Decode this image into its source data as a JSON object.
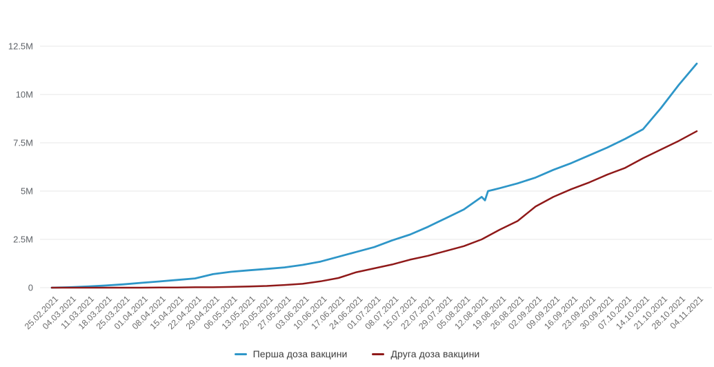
{
  "page": {
    "background_color": "#ffffff"
  },
  "chart_data": {
    "type": "line",
    "title": "",
    "grid": "horizontal",
    "grid_color": "#e7e7e7",
    "y_label_color": "#5f6368",
    "x_label_color": "#6d6d6d",
    "legend_position": "bottom-center",
    "ylim": [
      0,
      12.5
    ],
    "unit": "M",
    "y_ticks": [
      {
        "value": 0,
        "label": "0"
      },
      {
        "value": 2.5,
        "label": "2.5M"
      },
      {
        "value": 5,
        "label": "5M"
      },
      {
        "value": 7.5,
        "label": "7.5M"
      },
      {
        "value": 10,
        "label": "10M"
      },
      {
        "value": 12.5,
        "label": "12.5M"
      }
    ],
    "x_tick_labels": [
      "25.02.2021",
      "04.03.2021",
      "11.03.2021",
      "18.03.2021",
      "25.03.2021",
      "01.04.2021",
      "08.04.2021",
      "15.04.2021",
      "22.04.2021",
      "29.04.2021",
      "06.05.2021",
      "13.05.2021",
      "20.05.2021",
      "27.05.2021",
      "03.06.2021",
      "10.06.2021",
      "17.06.2021",
      "24.06.2021",
      "01.07.2021",
      "08.07.2021",
      "15.07.2021",
      "22.07.2021",
      "29.07.2021",
      "05.08.2021",
      "12.08.2021",
      "19.08.2021",
      "26.08.2021",
      "02.09.2021",
      "09.09.2021",
      "16.09.2021",
      "23.09.2021",
      "30.09.2021",
      "07.10.2021",
      "14.10.2021",
      "21.10.2021",
      "28.10.2021",
      "04.11.2021"
    ],
    "series": [
      {
        "name": "Перша доза вакцини",
        "slug": "first-dose",
        "color": "#2e96c8",
        "values_millions": [
          0.0,
          0.02,
          0.06,
          0.11,
          0.17,
          0.25,
          0.32,
          0.4,
          0.48,
          0.7,
          0.82,
          0.9,
          0.97,
          1.05,
          1.18,
          1.35,
          1.6,
          1.85,
          2.1,
          2.45,
          2.75,
          3.15,
          3.6,
          4.05,
          4.7,
          5.15,
          5.4,
          5.7,
          6.1,
          6.45,
          6.85,
          7.25,
          7.7,
          8.2,
          9.3,
          10.5,
          11.6
        ],
        "anomaly_note": "brief reporting dip then jump just after 12.08.2021",
        "extra_points": [
          {
            "after_index": 24,
            "offsets": [
              [
                0.18,
                4.52
              ],
              [
                0.35,
                5.0
              ]
            ]
          }
        ]
      },
      {
        "name": "Друга доза вакцини",
        "slug": "second-dose",
        "color": "#8f1919",
        "values_millions": [
          0.0,
          0.0,
          0.0,
          0.0,
          0.0,
          0.0,
          0.01,
          0.01,
          0.02,
          0.02,
          0.04,
          0.06,
          0.09,
          0.14,
          0.2,
          0.33,
          0.5,
          0.8,
          1.0,
          1.2,
          1.45,
          1.65,
          1.9,
          2.15,
          2.5,
          3.0,
          3.45,
          4.2,
          4.7,
          5.1,
          5.45,
          5.85,
          6.2,
          6.7,
          7.15,
          7.6,
          8.1
        ],
        "extra_points": []
      }
    ]
  },
  "legend": {
    "items": [
      {
        "label": "Перша доза вакцини"
      },
      {
        "label": "Друга доза вакцини"
      }
    ]
  }
}
